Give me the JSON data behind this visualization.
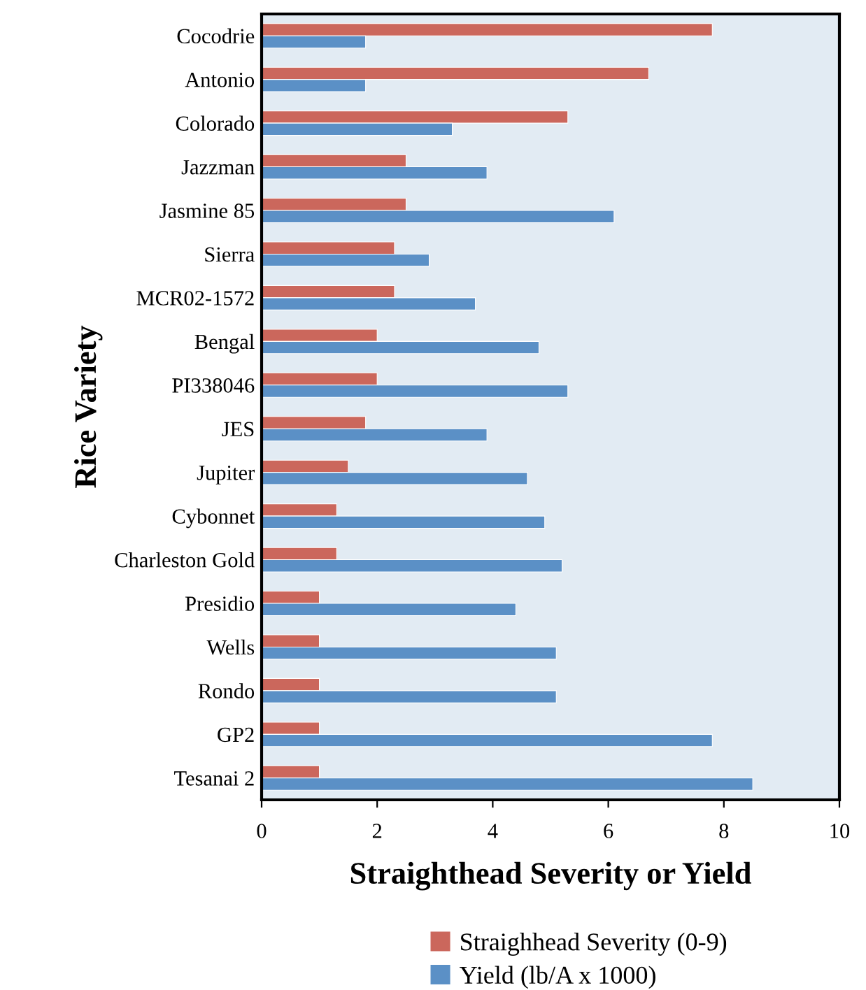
{
  "chart_data": {
    "type": "bar",
    "orientation": "horizontal",
    "xlabel": "Straighthead Severity or Yield",
    "ylabel": "Rice Variety",
    "categories": [
      "Cocodrie",
      "Antonio",
      "Colorado",
      "Jazzman",
      "Jasmine 85",
      "Sierra",
      "MCR02-1572",
      "Bengal",
      "PI338046",
      "JES",
      "Jupiter",
      "Cybonnet",
      "Charleston Gold",
      "Presidio",
      "Wells",
      "Rondo",
      "GP2",
      "Tesanai 2"
    ],
    "series": [
      {
        "name": "Straighhead Severity (0-9)",
        "color": "#cb675c",
        "values": [
          7.8,
          6.7,
          5.3,
          2.5,
          2.5,
          2.3,
          2.3,
          2.0,
          2.0,
          1.8,
          1.5,
          1.3,
          1.3,
          1.0,
          1.0,
          1.0,
          1.0,
          1.0
        ]
      },
      {
        "name": "Yield (lb/A x 1000)",
        "color": "#5b90c6",
        "values": [
          1.8,
          1.8,
          3.3,
          3.9,
          6.1,
          2.9,
          3.7,
          4.8,
          5.3,
          3.9,
          4.6,
          4.9,
          5.2,
          4.4,
          5.1,
          5.1,
          7.8,
          8.5
        ]
      }
    ],
    "xlim": [
      0,
      10
    ],
    "xticks": [
      0,
      2,
      4,
      6,
      8,
      10
    ],
    "grid": false,
    "legend": "bottom"
  }
}
